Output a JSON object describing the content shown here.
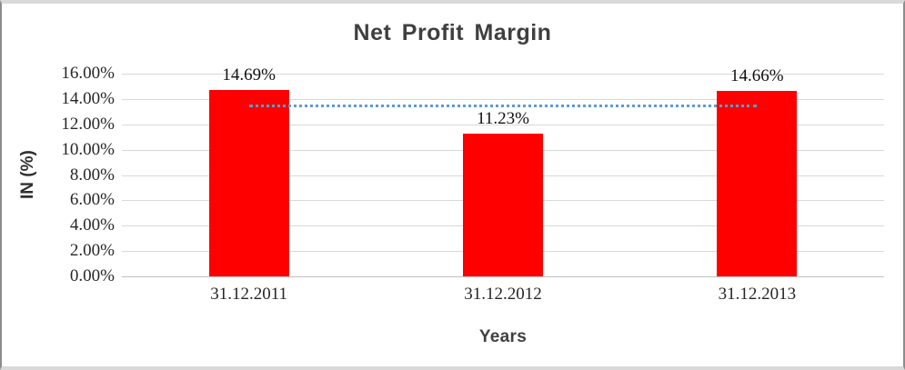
{
  "chart_data": {
    "type": "bar",
    "title": "Net Profit Margin",
    "xlabel": "Years",
    "ylabel": "IN (%)",
    "categories": [
      "31.12.2011",
      "31.12.2012",
      "31.12.2013"
    ],
    "values": [
      14.69,
      11.23,
      14.66
    ],
    "value_labels": [
      "14.69%",
      "11.23%",
      "14.66%"
    ],
    "ylim": [
      0,
      16
    ],
    "ytick_step": 2,
    "yticks": [
      "16.00%",
      "14.00%",
      "12.00%",
      "10.00%",
      "8.00%",
      "6.00%",
      "4.00%",
      "2.00%",
      "0.00%"
    ],
    "grid": true,
    "legend": false,
    "bar_color": "#ff0000",
    "gridline_color": "#d9d9d9",
    "axis_line_color": "#bfbfbf",
    "title_color": "#3f3f3f",
    "trendline": {
      "type": "linear",
      "style": "dotted",
      "color": "#5b9bd5",
      "approx_value": 13.5,
      "spans": "center of first bar to center of last bar"
    }
  }
}
